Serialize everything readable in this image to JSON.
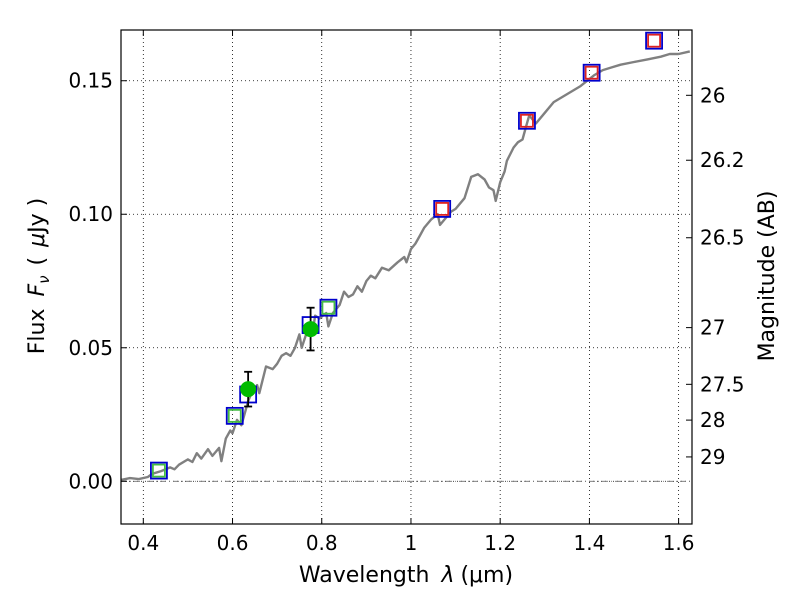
{
  "chart_data": {
    "type": "scatter",
    "xlabel_text": "Wavelength",
    "xlabel_symbol": "λ",
    "xlabel_unit": "(μm)",
    "ylabel_text": "Flux",
    "ylabel_symbol": "F",
    "ylabel_sub": "ν",
    "ylabel_unit_open": "(",
    "ylabel_unit_mu": "μ",
    "ylabel_unit_rest": "Jy )",
    "y2label": "Magnitude (AB)",
    "xlim": [
      0.35,
      1.63
    ],
    "ylim": [
      -0.016,
      0.169
    ],
    "x_ticks": [
      0.4,
      0.6,
      0.8,
      1.0,
      1.2,
      1.4,
      1.6
    ],
    "x_tick_labels": [
      "0.4",
      "0.6",
      "0.8",
      "1",
      "1.2",
      "1.4",
      "1.6"
    ],
    "y_ticks": [
      0.0,
      0.05,
      0.1,
      0.15
    ],
    "y_tick_labels": [
      "0.00",
      "0.05",
      "0.10",
      "0.15"
    ],
    "y2_ticks": [
      {
        "mag": 26,
        "label": "26"
      },
      {
        "mag": 26.2,
        "label": "26.2"
      },
      {
        "mag": 26.5,
        "label": "26.5"
      },
      {
        "mag": 27,
        "label": "27"
      },
      {
        "mag": 27.5,
        "label": "27.5"
      },
      {
        "mag": 28,
        "label": "28"
      },
      {
        "mag": 29,
        "label": "29"
      }
    ],
    "grid": true,
    "series": [
      {
        "name": "model spectrum",
        "kind": "line",
        "color": "#808080",
        "points": [
          [
            0.35,
            0.0005
          ],
          [
            0.37,
            0.0012
          ],
          [
            0.39,
            0.0008
          ],
          [
            0.41,
            0.0016
          ],
          [
            0.42,
            0.0028
          ],
          [
            0.44,
            0.0038
          ],
          [
            0.46,
            0.0052
          ],
          [
            0.47,
            0.0045
          ],
          [
            0.48,
            0.0062
          ],
          [
            0.5,
            0.0082
          ],
          [
            0.51,
            0.0072
          ],
          [
            0.52,
            0.0105
          ],
          [
            0.53,
            0.0085
          ],
          [
            0.545,
            0.012
          ],
          [
            0.555,
            0.0095
          ],
          [
            0.57,
            0.0125
          ],
          [
            0.575,
            0.0075
          ],
          [
            0.585,
            0.016
          ],
          [
            0.595,
            0.019
          ],
          [
            0.6,
            0.018
          ],
          [
            0.61,
            0.023
          ],
          [
            0.62,
            0.021
          ],
          [
            0.625,
            0.024
          ],
          [
            0.635,
            0.03
          ],
          [
            0.645,
            0.034
          ],
          [
            0.655,
            0.036
          ],
          [
            0.66,
            0.033
          ],
          [
            0.675,
            0.043
          ],
          [
            0.69,
            0.042
          ],
          [
            0.7,
            0.044
          ],
          [
            0.71,
            0.047
          ],
          [
            0.72,
            0.048
          ],
          [
            0.73,
            0.047
          ],
          [
            0.74,
            0.05
          ],
          [
            0.75,
            0.055
          ],
          [
            0.755,
            0.05
          ],
          [
            0.765,
            0.055
          ],
          [
            0.78,
            0.056
          ],
          [
            0.785,
            0.062
          ],
          [
            0.795,
            0.061
          ],
          [
            0.81,
            0.063
          ],
          [
            0.815,
            0.058
          ],
          [
            0.825,
            0.063
          ],
          [
            0.84,
            0.066
          ],
          [
            0.85,
            0.071
          ],
          [
            0.86,
            0.069
          ],
          [
            0.87,
            0.07
          ],
          [
            0.88,
            0.073
          ],
          [
            0.89,
            0.071
          ],
          [
            0.9,
            0.075
          ],
          [
            0.91,
            0.077
          ],
          [
            0.92,
            0.076
          ],
          [
            0.935,
            0.08
          ],
          [
            0.95,
            0.079
          ],
          [
            0.97,
            0.082
          ],
          [
            0.985,
            0.084
          ],
          [
            0.99,
            0.082
          ],
          [
            1.0,
            0.087
          ],
          [
            1.01,
            0.089
          ],
          [
            1.02,
            0.092
          ],
          [
            1.03,
            0.095
          ],
          [
            1.045,
            0.098
          ],
          [
            1.06,
            0.1
          ],
          [
            1.065,
            0.096
          ],
          [
            1.075,
            0.098
          ],
          [
            1.09,
            0.101
          ],
          [
            1.1,
            0.102
          ],
          [
            1.12,
            0.106
          ],
          [
            1.135,
            0.114
          ],
          [
            1.15,
            0.115
          ],
          [
            1.165,
            0.113
          ],
          [
            1.175,
            0.11
          ],
          [
            1.185,
            0.109
          ],
          [
            1.19,
            0.105
          ],
          [
            1.2,
            0.112
          ],
          [
            1.21,
            0.116
          ],
          [
            1.215,
            0.12
          ],
          [
            1.23,
            0.125
          ],
          [
            1.24,
            0.127
          ],
          [
            1.25,
            0.128
          ],
          [
            1.255,
            0.131
          ],
          [
            1.265,
            0.137
          ],
          [
            1.28,
            0.134
          ],
          [
            1.3,
            0.138
          ],
          [
            1.32,
            0.142
          ],
          [
            1.35,
            0.145
          ],
          [
            1.38,
            0.148
          ],
          [
            1.41,
            0.152
          ],
          [
            1.43,
            0.154
          ],
          [
            1.45,
            0.155
          ],
          [
            1.47,
            0.156
          ],
          [
            1.5,
            0.157
          ],
          [
            1.53,
            0.158
          ],
          [
            1.56,
            0.159
          ],
          [
            1.58,
            0.16
          ],
          [
            1.6,
            0.16
          ],
          [
            1.625,
            0.161
          ]
        ]
      },
      {
        "name": "blue squares",
        "kind": "square",
        "color": "#0000cc",
        "points": [
          [
            0.435,
            0.004
          ],
          [
            0.605,
            0.0245
          ],
          [
            0.635,
            0.0325
          ],
          [
            0.775,
            0.0585
          ],
          [
            0.815,
            0.065
          ],
          [
            1.07,
            0.102
          ],
          [
            1.26,
            0.135
          ],
          [
            1.405,
            0.153
          ],
          [
            1.545,
            0.165
          ]
        ]
      },
      {
        "name": "green squares",
        "kind": "square-small",
        "color": "#44bb44",
        "points": [
          [
            0.435,
            0.004
          ],
          [
            0.605,
            0.0245
          ],
          [
            0.815,
            0.065
          ]
        ]
      },
      {
        "name": "red squares",
        "kind": "square-small",
        "color": "#dd2222",
        "points": [
          [
            1.07,
            0.102
          ],
          [
            1.26,
            0.135
          ],
          [
            1.405,
            0.153
          ],
          [
            1.545,
            0.165
          ]
        ]
      },
      {
        "name": "observed",
        "kind": "errorbar",
        "color": "#00bb00",
        "points": [
          {
            "x": 0.635,
            "y": 0.0345,
            "yerr": 0.0065
          },
          {
            "x": 0.775,
            "y": 0.057,
            "yerr": 0.008
          }
        ]
      }
    ]
  }
}
